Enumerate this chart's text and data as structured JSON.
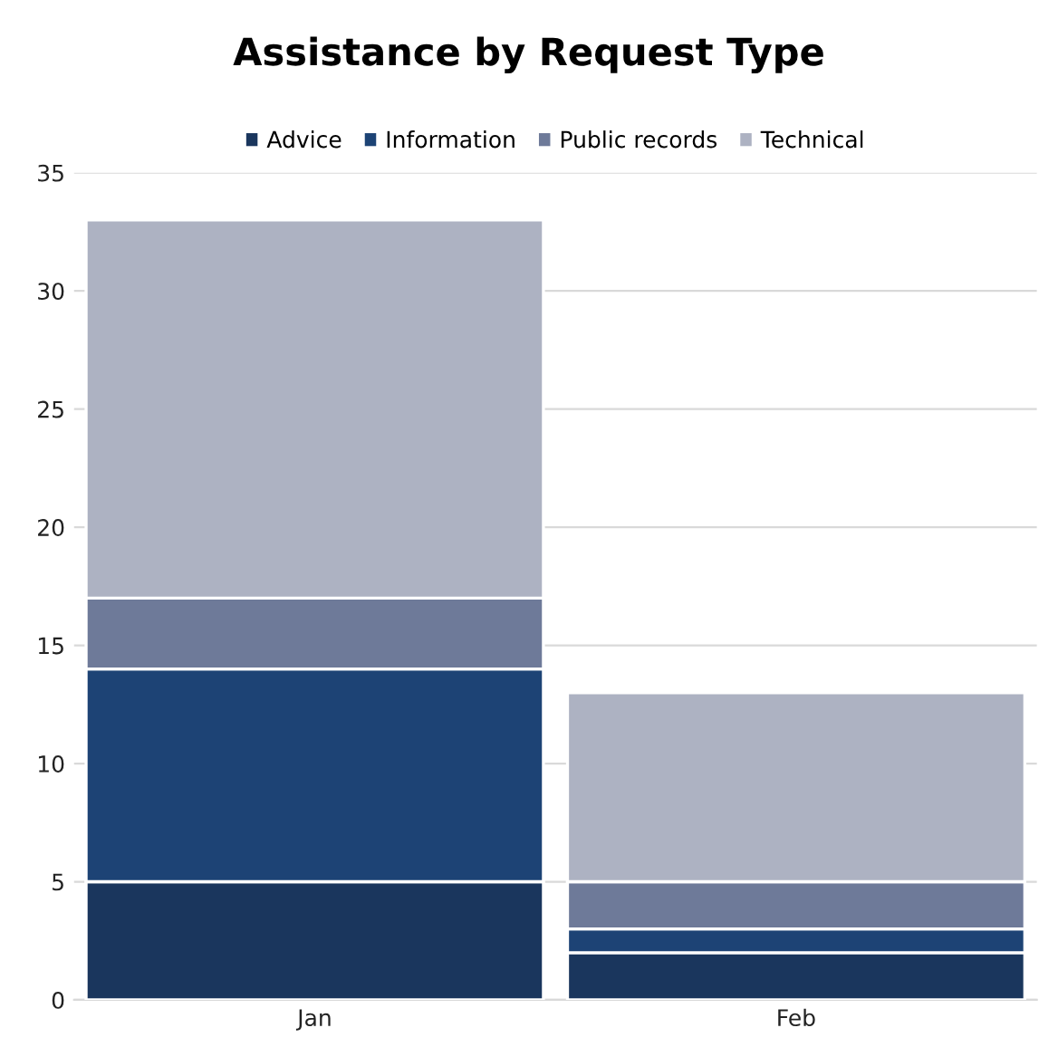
{
  "chart_data": {
    "type": "bar",
    "title": "Assistance by Request Type",
    "categories": [
      "Jan",
      "Feb"
    ],
    "stacked": true,
    "series": [
      {
        "name": "Advice",
        "color": "#1a365d",
        "values": [
          5,
          2
        ]
      },
      {
        "name": "Information",
        "color": "#1d4375",
        "values": [
          9,
          1
        ]
      },
      {
        "name": "Public records",
        "color": "#6e7a99",
        "values": [
          3,
          2
        ]
      },
      {
        "name": "Technical",
        "color": "#adb2c2",
        "values": [
          16,
          8
        ]
      }
    ],
    "ylim": [
      0,
      35
    ],
    "yticks": [
      0,
      5,
      10,
      15,
      20,
      25,
      30,
      35
    ],
    "grid": "y",
    "legend": "top"
  }
}
